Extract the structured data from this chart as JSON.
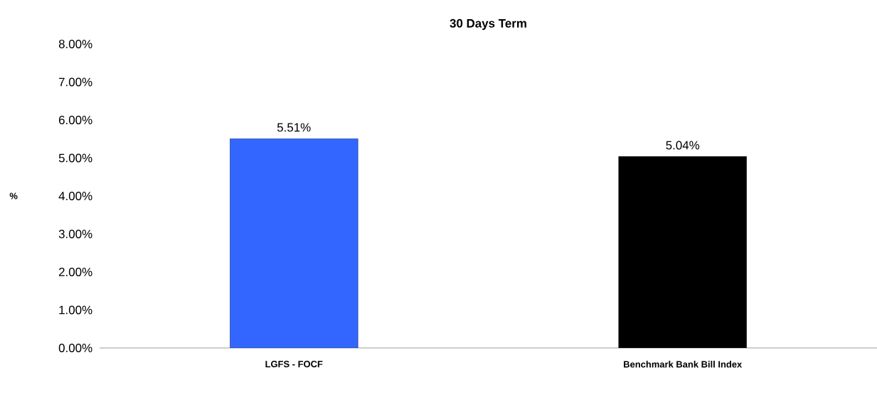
{
  "chart_data": {
    "type": "bar",
    "title": "30 Days Term",
    "ylabel": "%",
    "categories": [
      "LGFS - FOCF",
      "Benchmark Bank Bill Index"
    ],
    "values": [
      5.51,
      5.04
    ],
    "colors": [
      "#3366ff",
      "#000000"
    ],
    "value_labels": [
      "5.51%",
      "5.04%"
    ],
    "ylim": [
      0,
      8
    ],
    "yticks": [
      {
        "value": 0,
        "label": "0.00%"
      },
      {
        "value": 1,
        "label": "1.00%"
      },
      {
        "value": 2,
        "label": "2.00%"
      },
      {
        "value": 3,
        "label": "3.00%"
      },
      {
        "value": 4,
        "label": "4.00%"
      },
      {
        "value": 5,
        "label": "5.00%"
      },
      {
        "value": 6,
        "label": "6.00%"
      },
      {
        "value": 7,
        "label": "7.00%"
      },
      {
        "value": 8,
        "label": "8.00%"
      }
    ],
    "tick_labels": true
  }
}
